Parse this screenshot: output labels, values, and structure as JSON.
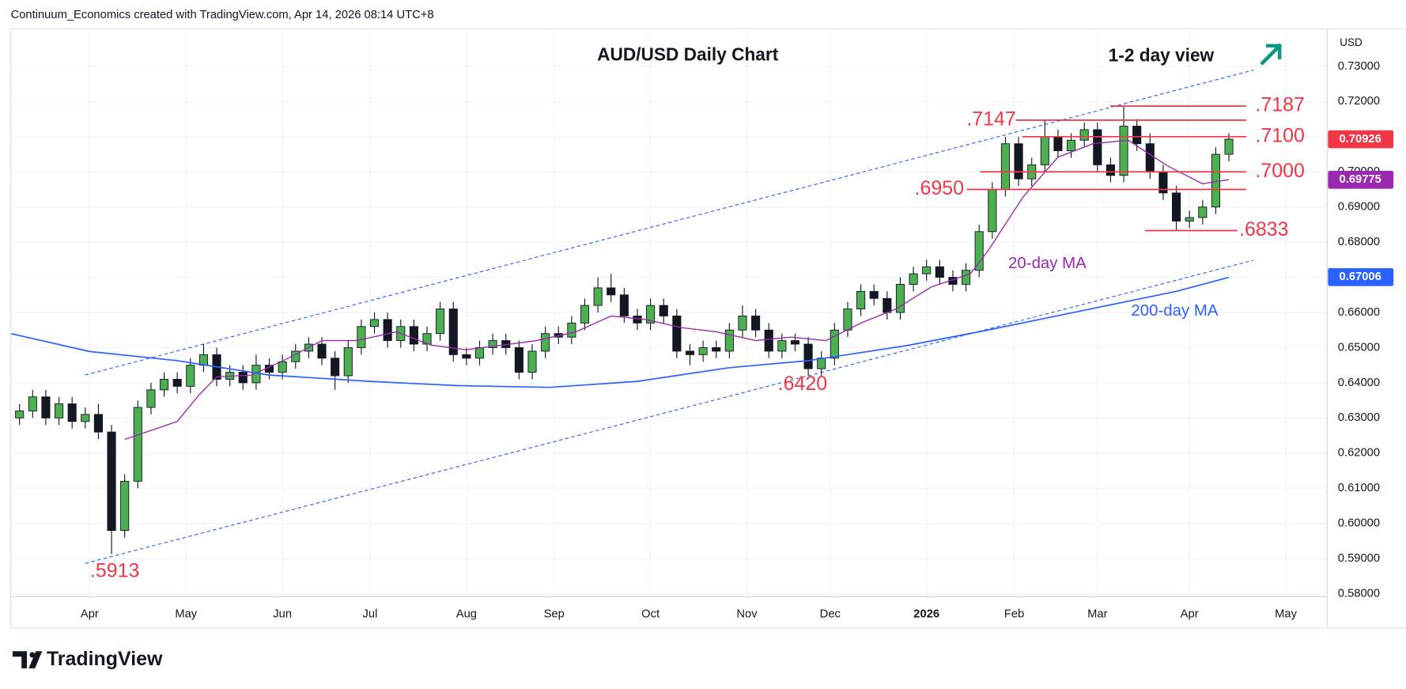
{
  "header": "Continuum_Economics created with TradingView.com, Apr 14, 2026 08:14 UTC+8",
  "brand": "TradingView",
  "chart_data": {
    "type": "candlestick",
    "title": "AUD/USD Daily Chart",
    "subtitle": "1-2 day view",
    "y_axis_label": "USD",
    "up_color": "#4caf50",
    "down_color": "#131722",
    "grid": true,
    "xlim": [
      0,
      300
    ],
    "xticks": [
      {
        "value": 18,
        "label": "Apr"
      },
      {
        "value": 40,
        "label": "May"
      },
      {
        "value": 62,
        "label": "Jun"
      },
      {
        "value": 82,
        "label": "Jul"
      },
      {
        "value": 104,
        "label": "Aug"
      },
      {
        "value": 124,
        "label": "Sep"
      },
      {
        "value": 146,
        "label": "Oct"
      },
      {
        "value": 168,
        "label": "Nov"
      },
      {
        "value": 187,
        "label": "Dec"
      },
      {
        "value": 209,
        "label": "2026"
      },
      {
        "value": 229,
        "label": "Feb"
      },
      {
        "value": 248,
        "label": "Mar"
      },
      {
        "value": 269,
        "label": "Apr"
      },
      {
        "value": 291,
        "label": "May"
      }
    ],
    "ylim": [
      0.5792,
      0.7407
    ],
    "yticks": [
      {
        "value": 0.73,
        "label": "0.73000"
      },
      {
        "value": 0.72,
        "label": "0.72000"
      },
      {
        "value": 0.71,
        "label": "0.71000"
      },
      {
        "value": 0.7,
        "label": "0.70000"
      },
      {
        "value": 0.69,
        "label": "0.69000"
      },
      {
        "value": 0.68,
        "label": "0.68000"
      },
      {
        "value": 0.67,
        "label": "0.67000"
      },
      {
        "value": 0.66,
        "label": "0.66000"
      },
      {
        "value": 0.65,
        "label": "0.65000"
      },
      {
        "value": 0.64,
        "label": "0.64000"
      },
      {
        "value": 0.63,
        "label": "0.63000"
      },
      {
        "value": 0.62,
        "label": "0.62000"
      },
      {
        "value": 0.61,
        "label": "0.61000"
      },
      {
        "value": 0.6,
        "label": "0.60000"
      },
      {
        "value": 0.59,
        "label": "0.59000"
      },
      {
        "value": 0.58,
        "label": "0.58000"
      }
    ],
    "x": [
      2,
      5,
      8,
      11,
      14,
      17,
      20,
      23,
      26,
      29,
      32,
      35,
      38,
      41,
      44,
      47,
      50,
      53,
      56,
      59,
      62,
      65,
      68,
      71,
      74,
      77,
      80,
      83,
      86,
      89,
      92,
      95,
      98,
      101,
      104,
      107,
      110,
      113,
      116,
      119,
      122,
      125,
      128,
      131,
      134,
      137,
      140,
      143,
      146,
      149,
      152,
      155,
      158,
      161,
      164,
      167,
      170,
      173,
      176,
      179,
      182,
      185,
      188,
      191,
      194,
      197,
      200,
      203,
      206,
      209,
      212,
      215,
      218,
      221,
      224,
      227,
      230,
      233,
      236,
      239,
      242,
      245,
      248,
      251,
      254,
      257,
      260,
      263,
      266,
      269,
      272,
      275,
      278
    ],
    "open": [
      0.63,
      0.632,
      0.636,
      0.63,
      0.634,
      0.629,
      0.631,
      0.626,
      0.598,
      0.612,
      0.633,
      0.638,
      0.641,
      0.639,
      0.645,
      0.648,
      0.641,
      0.643,
      0.64,
      0.645,
      0.643,
      0.646,
      0.649,
      0.651,
      0.647,
      0.642,
      0.65,
      0.656,
      0.658,
      0.652,
      0.656,
      0.651,
      0.654,
      0.661,
      0.648,
      0.647,
      0.65,
      0.652,
      0.65,
      0.643,
      0.649,
      0.654,
      0.653,
      0.657,
      0.662,
      0.667,
      0.665,
      0.659,
      0.657,
      0.662,
      0.659,
      0.649,
      0.648,
      0.65,
      0.649,
      0.655,
      0.659,
      0.655,
      0.649,
      0.652,
      0.651,
      0.644,
      0.647,
      0.655,
      0.661,
      0.666,
      0.664,
      0.66,
      0.668,
      0.671,
      0.673,
      0.67,
      0.668,
      0.672,
      0.683,
      0.695,
      0.708,
      0.698,
      0.702,
      0.71,
      0.706,
      0.709,
      0.712,
      0.702,
      0.699,
      0.713,
      0.708,
      0.7,
      0.694,
      0.686,
      0.687,
      0.69,
      0.705
    ],
    "high": [
      0.634,
      0.638,
      0.638,
      0.636,
      0.636,
      0.633,
      0.634,
      0.628,
      0.614,
      0.635,
      0.64,
      0.643,
      0.643,
      0.647,
      0.651,
      0.65,
      0.645,
      0.645,
      0.648,
      0.647,
      0.648,
      0.651,
      0.653,
      0.653,
      0.649,
      0.652,
      0.658,
      0.66,
      0.66,
      0.658,
      0.658,
      0.656,
      0.663,
      0.663,
      0.65,
      0.652,
      0.654,
      0.654,
      0.652,
      0.651,
      0.656,
      0.656,
      0.659,
      0.664,
      0.67,
      0.671,
      0.667,
      0.661,
      0.664,
      0.664,
      0.661,
      0.651,
      0.652,
      0.652,
      0.657,
      0.662,
      0.661,
      0.657,
      0.654,
      0.654,
      0.653,
      0.649,
      0.657,
      0.663,
      0.668,
      0.668,
      0.666,
      0.67,
      0.673,
      0.675,
      0.675,
      0.672,
      0.674,
      0.685,
      0.697,
      0.71,
      0.71,
      0.704,
      0.7147,
      0.712,
      0.711,
      0.714,
      0.714,
      0.704,
      0.7187,
      0.715,
      0.711,
      0.702,
      0.696,
      0.689,
      0.692,
      0.707,
      0.711
    ],
    "low": [
      0.628,
      0.63,
      0.628,
      0.628,
      0.627,
      0.627,
      0.624,
      0.5913,
      0.596,
      0.61,
      0.631,
      0.636,
      0.637,
      0.637,
      0.643,
      0.639,
      0.639,
      0.638,
      0.638,
      0.641,
      0.641,
      0.644,
      0.647,
      0.645,
      0.638,
      0.64,
      0.648,
      0.654,
      0.65,
      0.65,
      0.649,
      0.649,
      0.652,
      0.646,
      0.645,
      0.645,
      0.648,
      0.648,
      0.641,
      0.641,
      0.647,
      0.651,
      0.651,
      0.655,
      0.66,
      0.663,
      0.657,
      0.655,
      0.655,
      0.657,
      0.647,
      0.645,
      0.646,
      0.647,
      0.647,
      0.653,
      0.653,
      0.647,
      0.647,
      0.649,
      0.642,
      0.642,
      0.645,
      0.653,
      0.659,
      0.662,
      0.658,
      0.658,
      0.666,
      0.669,
      0.668,
      0.666,
      0.666,
      0.67,
      0.681,
      0.693,
      0.696,
      0.696,
      0.7,
      0.704,
      0.704,
      0.707,
      0.7,
      0.697,
      0.697,
      0.706,
      0.698,
      0.692,
      0.6833,
      0.684,
      0.685,
      0.688,
      0.703
    ],
    "close": [
      0.632,
      0.636,
      0.63,
      0.634,
      0.629,
      0.631,
      0.626,
      0.598,
      0.612,
      0.633,
      0.638,
      0.641,
      0.639,
      0.645,
      0.648,
      0.641,
      0.643,
      0.64,
      0.645,
      0.643,
      0.646,
      0.649,
      0.651,
      0.647,
      0.642,
      0.65,
      0.656,
      0.658,
      0.652,
      0.656,
      0.651,
      0.654,
      0.661,
      0.648,
      0.647,
      0.65,
      0.652,
      0.65,
      0.643,
      0.649,
      0.654,
      0.653,
      0.657,
      0.662,
      0.667,
      0.665,
      0.659,
      0.657,
      0.662,
      0.659,
      0.649,
      0.648,
      0.65,
      0.649,
      0.655,
      0.659,
      0.655,
      0.649,
      0.652,
      0.651,
      0.644,
      0.647,
      0.655,
      0.661,
      0.666,
      0.664,
      0.66,
      0.668,
      0.671,
      0.673,
      0.67,
      0.668,
      0.672,
      0.683,
      0.695,
      0.708,
      0.698,
      0.702,
      0.71,
      0.706,
      0.709,
      0.712,
      0.702,
      0.699,
      0.713,
      0.708,
      0.7,
      0.694,
      0.686,
      0.687,
      0.69,
      0.705,
      0.7093
    ],
    "series": [
      {
        "name": "20-day MA",
        "color": "#9c27b0",
        "x": [
          26,
          38,
          43,
          47,
          55,
          63,
          71,
          79,
          88,
          96,
          104,
          112,
          120,
          129,
          137,
          145,
          153,
          161,
          170,
          178,
          186,
          194,
          202,
          210,
          219,
          223,
          231,
          239,
          247,
          255,
          264,
          272,
          278
        ],
        "values": [
          0.6239,
          0.629,
          0.6366,
          0.6417,
          0.6422,
          0.6468,
          0.652,
          0.652,
          0.6545,
          0.6507,
          0.6494,
          0.6507,
          0.652,
          0.6545,
          0.659,
          0.658,
          0.6557,
          0.6545,
          0.652,
          0.653,
          0.652,
          0.657,
          0.661,
          0.6672,
          0.671,
          0.6775,
          0.6928,
          0.7042,
          0.708,
          0.709,
          0.7017,
          0.6966,
          0.6978
        ]
      },
      {
        "name": "200-day MA",
        "color": "#2962ff",
        "x": [
          0,
          18,
          38,
          59,
          82,
          102,
          123,
          143,
          164,
          182,
          205,
          223,
          246,
          266,
          278
        ],
        "values": [
          0.654,
          0.6489,
          0.6463,
          0.6422,
          0.6404,
          0.6392,
          0.6387,
          0.6404,
          0.6443,
          0.6463,
          0.6507,
          0.655,
          0.6609,
          0.666,
          0.67
        ]
      }
    ],
    "level_color": "#f23645",
    "levels": [
      {
        "value": 0.7187,
        "label": ".7187"
      },
      {
        "value": 0.7147,
        "label": ".7147"
      },
      {
        "value": 0.71,
        "label": ".7100"
      },
      {
        "value": 0.7,
        "label": ".7000"
      },
      {
        "value": 0.695,
        "label": ".6950"
      },
      {
        "value": 0.6833,
        "label": ".6833"
      }
    ],
    "annotations": [
      {
        "value": 0.5913,
        "label": ".5913"
      },
      {
        "value": 0.642,
        "label": ".6420"
      }
    ],
    "price_labels": [
      {
        "value": 0.70926,
        "label": "0.70926",
        "color": "#f23645"
      },
      {
        "value": 0.69775,
        "label": "0.69775",
        "color": "#9c27b0"
      },
      {
        "value": 0.67006,
        "label": "0.67006",
        "color": "#2962ff"
      }
    ]
  }
}
